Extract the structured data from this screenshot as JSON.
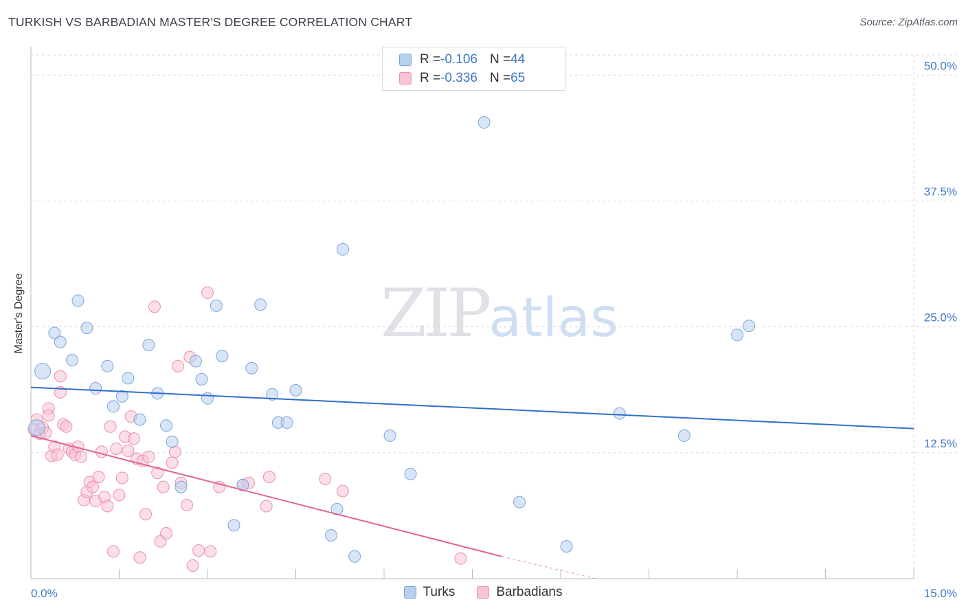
{
  "header": {
    "title": "TURKISH VS BARBADIAN MASTER'S DEGREE CORRELATION CHART",
    "source": "Source: ZipAtlas.com"
  },
  "watermark": {
    "zip": "ZIP",
    "atlas": "atlas"
  },
  "legend_top": {
    "rows": [
      {
        "r_label": "R = ",
        "r_value": "-0.106",
        "n_label": "N = ",
        "n_value": "44"
      },
      {
        "r_label": "R = ",
        "r_value": "-0.336",
        "n_label": "N = ",
        "n_value": "65"
      }
    ]
  },
  "legend_bottom": {
    "turks": "Turks",
    "barbadians": "Barbadians"
  },
  "colors": {
    "turks_fill": "#b8d0f0",
    "turks_stroke": "#7aa6dd",
    "turks_line": "#2f6fcb",
    "barb_fill": "#f8c3d2",
    "barb_stroke": "#ec8fab",
    "barb_line": "#e0668f",
    "axis_text": "#3b78c9",
    "grid": "#d9d9d9"
  },
  "chart_data": {
    "type": "scatter",
    "title": "TURKISH VS BARBADIAN MASTER'S DEGREE CORRELATION CHART",
    "xlabel": "",
    "ylabel": "Master's Degree",
    "xlim": [
      0,
      15
    ],
    "ylim": [
      0,
      52
    ],
    "x_tick_labels": [
      "0.0%",
      "15.0%"
    ],
    "y_ticks": [
      12.5,
      25.0,
      37.5,
      50.0
    ],
    "y_tick_labels": [
      "12.5%",
      "25.0%",
      "37.5%",
      "50.0%"
    ],
    "grid": true,
    "legend_position": "top-center",
    "series": [
      {
        "name": "Turks",
        "r": -0.106,
        "n": 44,
        "trend": {
          "x": [
            0,
            15
          ],
          "y": [
            19.0,
            14.9
          ]
        },
        "points": [
          [
            0.1,
            15.0
          ],
          [
            0.2,
            20.6
          ],
          [
            0.4,
            24.4
          ],
          [
            0.5,
            23.5
          ],
          [
            0.7,
            21.7
          ],
          [
            0.8,
            27.6
          ],
          [
            0.95,
            24.9
          ],
          [
            1.1,
            18.9
          ],
          [
            1.3,
            21.1
          ],
          [
            1.4,
            17.1
          ],
          [
            1.55,
            18.1
          ],
          [
            1.65,
            19.9
          ],
          [
            1.85,
            15.8
          ],
          [
            2.0,
            23.2
          ],
          [
            2.15,
            18.4
          ],
          [
            2.3,
            15.2
          ],
          [
            2.4,
            13.6
          ],
          [
            2.55,
            9.1
          ],
          [
            2.8,
            21.6
          ],
          [
            2.9,
            19.8
          ],
          [
            3.0,
            17.9
          ],
          [
            3.15,
            27.1
          ],
          [
            3.25,
            22.1
          ],
          [
            3.45,
            5.3
          ],
          [
            3.6,
            9.3
          ],
          [
            3.75,
            20.9
          ],
          [
            3.9,
            27.2
          ],
          [
            4.1,
            18.3
          ],
          [
            4.2,
            15.5
          ],
          [
            4.35,
            15.5
          ],
          [
            4.5,
            18.7
          ],
          [
            5.1,
            4.3
          ],
          [
            5.2,
            6.9
          ],
          [
            5.3,
            32.7
          ],
          [
            5.5,
            2.2
          ],
          [
            6.1,
            14.2
          ],
          [
            6.45,
            10.4
          ],
          [
            7.7,
            45.3
          ],
          [
            8.3,
            7.6
          ],
          [
            9.1,
            3.2
          ],
          [
            10.0,
            16.4
          ],
          [
            11.1,
            14.2
          ],
          [
            12.0,
            24.2
          ],
          [
            12.2,
            25.1
          ]
        ]
      },
      {
        "name": "Barbadians",
        "r": -0.336,
        "n": 65,
        "trend": {
          "x": [
            0,
            8.0
          ],
          "y": [
            14.2,
            2.2
          ]
        },
        "trend_dashed": {
          "x": [
            8.0,
            9.6
          ],
          "y": [
            2.2,
            -0.2
          ]
        },
        "points": [
          [
            0.05,
            14.8
          ],
          [
            0.1,
            15.8
          ],
          [
            0.15,
            14.4
          ],
          [
            0.2,
            15.0
          ],
          [
            0.25,
            14.5
          ],
          [
            0.3,
            16.9
          ],
          [
            0.3,
            16.2
          ],
          [
            0.35,
            12.2
          ],
          [
            0.4,
            13.1
          ],
          [
            0.45,
            12.3
          ],
          [
            0.5,
            20.1
          ],
          [
            0.5,
            18.5
          ],
          [
            0.55,
            15.3
          ],
          [
            0.6,
            15.1
          ],
          [
            0.65,
            12.9
          ],
          [
            0.7,
            12.6
          ],
          [
            0.75,
            12.3
          ],
          [
            0.8,
            13.1
          ],
          [
            0.85,
            12.1
          ],
          [
            0.9,
            7.8
          ],
          [
            0.95,
            8.6
          ],
          [
            1.0,
            9.6
          ],
          [
            1.05,
            9.1
          ],
          [
            1.1,
            7.7
          ],
          [
            1.15,
            10.1
          ],
          [
            1.2,
            12.6
          ],
          [
            1.25,
            8.1
          ],
          [
            1.3,
            7.2
          ],
          [
            1.35,
            15.1
          ],
          [
            1.4,
            2.7
          ],
          [
            1.45,
            12.9
          ],
          [
            1.5,
            8.3
          ],
          [
            1.55,
            10.0
          ],
          [
            1.6,
            14.1
          ],
          [
            1.65,
            12.7
          ],
          [
            1.7,
            16.1
          ],
          [
            1.75,
            13.9
          ],
          [
            1.8,
            11.9
          ],
          [
            1.85,
            2.1
          ],
          [
            1.9,
            11.7
          ],
          [
            1.95,
            6.4
          ],
          [
            2.0,
            12.1
          ],
          [
            2.1,
            27.0
          ],
          [
            2.15,
            10.5
          ],
          [
            2.2,
            3.7
          ],
          [
            2.25,
            9.1
          ],
          [
            2.3,
            4.5
          ],
          [
            2.4,
            11.5
          ],
          [
            2.45,
            12.6
          ],
          [
            2.5,
            21.1
          ],
          [
            2.55,
            9.5
          ],
          [
            2.65,
            7.3
          ],
          [
            2.7,
            22.0
          ],
          [
            2.75,
            1.3
          ],
          [
            2.85,
            2.8
          ],
          [
            3.0,
            28.4
          ],
          [
            3.05,
            2.7
          ],
          [
            3.2,
            9.1
          ],
          [
            3.6,
            9.3
          ],
          [
            3.7,
            9.5
          ],
          [
            4.0,
            7.2
          ],
          [
            4.05,
            10.1
          ],
          [
            5.0,
            9.9
          ],
          [
            5.3,
            8.7
          ],
          [
            7.3,
            2.0
          ]
        ]
      }
    ]
  }
}
